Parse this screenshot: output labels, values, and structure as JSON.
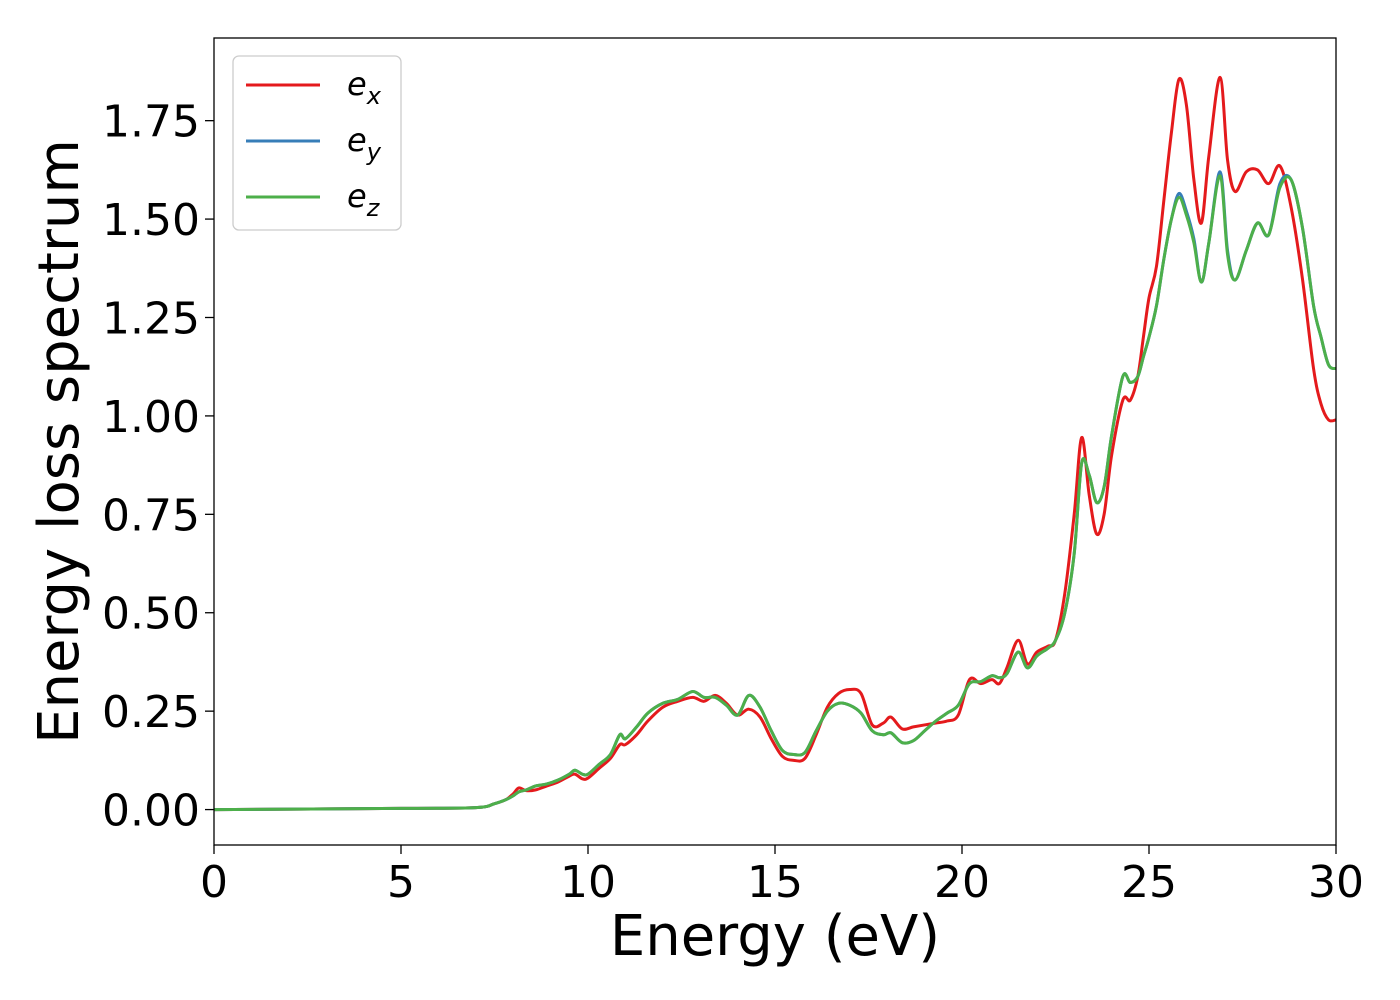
{
  "chart_data": {
    "type": "line",
    "xlabel": "Energy (eV)",
    "ylabel": "Energy loss spectrum",
    "xlim": [
      0,
      30
    ],
    "ylim": [
      -0.09,
      1.96
    ],
    "xticks": [
      0,
      5,
      10,
      15,
      20,
      25,
      30
    ],
    "xtick_labels": [
      "0",
      "5",
      "10",
      "15",
      "20",
      "25",
      "30"
    ],
    "yticks": [
      0,
      0.25,
      0.5,
      0.75,
      1.0,
      1.25,
      1.5,
      1.75
    ],
    "ytick_labels": [
      "0.00",
      "0.25",
      "0.50",
      "0.75",
      "1.00",
      "1.25",
      "1.50",
      "1.75"
    ],
    "grid": false,
    "legend_position": "top-left",
    "series": [
      {
        "name": "e_x",
        "legend_base": "e",
        "legend_sub": "x",
        "color": "#e41a1c",
        "x": [
          0,
          5,
          7,
          7.5,
          7.8,
          8.0,
          8.15,
          8.35,
          8.6,
          8.9,
          9.2,
          9.5,
          9.65,
          9.85,
          10.0,
          10.3,
          10.6,
          10.85,
          11.0,
          11.3,
          11.6,
          12.0,
          12.4,
          12.8,
          13.1,
          13.4,
          13.7,
          14.0,
          14.3,
          14.6,
          14.9,
          15.2,
          15.5,
          15.8,
          16.1,
          16.4,
          16.7,
          17.0,
          17.3,
          17.6,
          17.9,
          18.1,
          18.4,
          18.7,
          19.0,
          19.3,
          19.6,
          19.9,
          20.2,
          20.5,
          20.8,
          21.0,
          21.2,
          21.5,
          21.75,
          22.0,
          22.3,
          22.5,
          22.75,
          23.0,
          23.2,
          23.4,
          23.6,
          23.8,
          24.0,
          24.3,
          24.5,
          24.7,
          24.85,
          25.0,
          25.2,
          25.4,
          25.6,
          25.8,
          26.0,
          26.2,
          26.4,
          26.6,
          26.9,
          27.1,
          27.3,
          27.6,
          27.9,
          28.2,
          28.5,
          28.8,
          29.1,
          29.4,
          29.6,
          29.8,
          30.0
        ],
        "values": [
          0.0,
          0.003,
          0.005,
          0.015,
          0.025,
          0.04,
          0.055,
          0.048,
          0.05,
          0.06,
          0.07,
          0.085,
          0.09,
          0.078,
          0.08,
          0.105,
          0.13,
          0.165,
          0.165,
          0.19,
          0.225,
          0.26,
          0.275,
          0.285,
          0.275,
          0.29,
          0.27,
          0.24,
          0.255,
          0.235,
          0.18,
          0.135,
          0.125,
          0.13,
          0.19,
          0.26,
          0.295,
          0.305,
          0.295,
          0.215,
          0.22,
          0.235,
          0.205,
          0.21,
          0.215,
          0.22,
          0.225,
          0.24,
          0.33,
          0.32,
          0.33,
          0.32,
          0.36,
          0.43,
          0.37,
          0.4,
          0.415,
          0.43,
          0.55,
          0.75,
          0.945,
          0.8,
          0.7,
          0.75,
          0.9,
          1.04,
          1.04,
          1.1,
          1.2,
          1.3,
          1.38,
          1.55,
          1.72,
          1.855,
          1.79,
          1.6,
          1.49,
          1.66,
          1.86,
          1.65,
          1.57,
          1.62,
          1.625,
          1.59,
          1.635,
          1.53,
          1.35,
          1.12,
          1.03,
          0.99,
          0.99
        ]
      },
      {
        "name": "e_y",
        "legend_base": "e",
        "legend_sub": "y",
        "color": "#377eb8",
        "x": [
          0,
          5,
          7,
          7.5,
          7.8,
          8.0,
          8.15,
          8.35,
          8.6,
          8.9,
          9.2,
          9.5,
          9.65,
          9.85,
          10.0,
          10.3,
          10.6,
          10.85,
          11.0,
          11.3,
          11.6,
          12.0,
          12.4,
          12.8,
          13.1,
          13.4,
          13.7,
          14.0,
          14.3,
          14.6,
          14.9,
          15.2,
          15.5,
          15.8,
          16.1,
          16.4,
          16.7,
          17.0,
          17.3,
          17.6,
          17.9,
          18.1,
          18.4,
          18.7,
          19.0,
          19.3,
          19.6,
          19.9,
          20.2,
          20.5,
          20.8,
          21.0,
          21.2,
          21.5,
          21.75,
          22.0,
          22.3,
          22.5,
          22.75,
          23.0,
          23.2,
          23.4,
          23.6,
          23.8,
          24.0,
          24.3,
          24.5,
          24.7,
          24.85,
          25.0,
          25.2,
          25.4,
          25.6,
          25.8,
          26.0,
          26.2,
          26.4,
          26.6,
          26.9,
          27.1,
          27.3,
          27.6,
          27.9,
          28.2,
          28.5,
          28.8,
          29.1,
          29.4,
          29.6,
          29.8,
          30.0
        ],
        "values": [
          0.0,
          0.003,
          0.005,
          0.015,
          0.025,
          0.035,
          0.045,
          0.05,
          0.06,
          0.065,
          0.075,
          0.09,
          0.1,
          0.09,
          0.09,
          0.115,
          0.14,
          0.19,
          0.18,
          0.21,
          0.245,
          0.27,
          0.28,
          0.3,
          0.285,
          0.285,
          0.265,
          0.24,
          0.29,
          0.26,
          0.2,
          0.15,
          0.14,
          0.145,
          0.2,
          0.25,
          0.27,
          0.265,
          0.245,
          0.2,
          0.19,
          0.195,
          0.17,
          0.175,
          0.2,
          0.225,
          0.245,
          0.265,
          0.32,
          0.325,
          0.34,
          0.335,
          0.345,
          0.4,
          0.36,
          0.39,
          0.41,
          0.43,
          0.5,
          0.65,
          0.88,
          0.85,
          0.78,
          0.82,
          0.95,
          1.1,
          1.085,
          1.1,
          1.15,
          1.2,
          1.28,
          1.4,
          1.5,
          1.565,
          1.52,
          1.45,
          1.34,
          1.44,
          1.62,
          1.42,
          1.345,
          1.42,
          1.49,
          1.46,
          1.59,
          1.6,
          1.48,
          1.28,
          1.2,
          1.13,
          1.12
        ]
      },
      {
        "name": "e_z",
        "legend_base": "e",
        "legend_sub": "z",
        "color": "#4daf4a",
        "x": [
          0,
          5,
          7,
          7.5,
          7.8,
          8.0,
          8.15,
          8.35,
          8.6,
          8.9,
          9.2,
          9.5,
          9.65,
          9.85,
          10.0,
          10.3,
          10.6,
          10.85,
          11.0,
          11.3,
          11.6,
          12.0,
          12.4,
          12.8,
          13.1,
          13.4,
          13.7,
          14.0,
          14.3,
          14.6,
          14.9,
          15.2,
          15.5,
          15.8,
          16.1,
          16.4,
          16.7,
          17.0,
          17.3,
          17.6,
          17.9,
          18.1,
          18.4,
          18.7,
          19.0,
          19.3,
          19.6,
          19.9,
          20.2,
          20.5,
          20.8,
          21.0,
          21.2,
          21.5,
          21.75,
          22.0,
          22.3,
          22.5,
          22.75,
          23.0,
          23.2,
          23.4,
          23.6,
          23.8,
          24.0,
          24.3,
          24.5,
          24.7,
          24.85,
          25.0,
          25.2,
          25.4,
          25.6,
          25.8,
          26.0,
          26.2,
          26.4,
          26.6,
          26.9,
          27.1,
          27.3,
          27.6,
          27.9,
          28.2,
          28.5,
          28.8,
          29.1,
          29.4,
          29.6,
          29.8,
          30.0
        ],
        "values": [
          0.0,
          0.003,
          0.005,
          0.015,
          0.025,
          0.035,
          0.045,
          0.05,
          0.06,
          0.065,
          0.075,
          0.09,
          0.1,
          0.09,
          0.09,
          0.115,
          0.14,
          0.19,
          0.18,
          0.21,
          0.245,
          0.27,
          0.28,
          0.3,
          0.285,
          0.285,
          0.265,
          0.24,
          0.29,
          0.26,
          0.2,
          0.15,
          0.14,
          0.145,
          0.2,
          0.25,
          0.27,
          0.265,
          0.245,
          0.2,
          0.19,
          0.195,
          0.17,
          0.175,
          0.2,
          0.225,
          0.245,
          0.265,
          0.32,
          0.325,
          0.34,
          0.335,
          0.345,
          0.4,
          0.36,
          0.39,
          0.41,
          0.43,
          0.5,
          0.65,
          0.88,
          0.85,
          0.78,
          0.82,
          0.95,
          1.1,
          1.085,
          1.1,
          1.15,
          1.2,
          1.28,
          1.4,
          1.5,
          1.555,
          1.51,
          1.44,
          1.34,
          1.44,
          1.61,
          1.41,
          1.345,
          1.42,
          1.49,
          1.46,
          1.58,
          1.6,
          1.48,
          1.28,
          1.2,
          1.13,
          1.12
        ]
      }
    ]
  }
}
